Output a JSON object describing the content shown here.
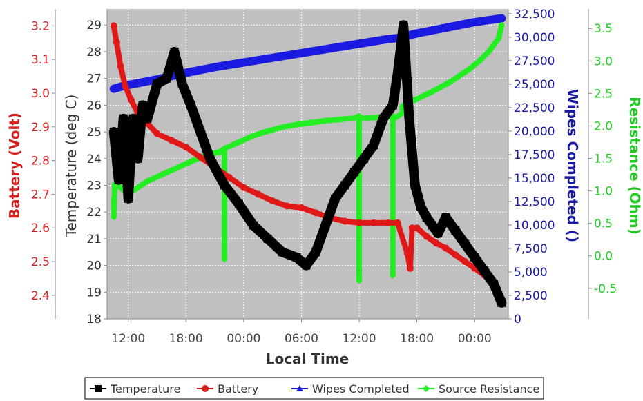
{
  "chart_data": {
    "type": "line",
    "xlabel": "Local Time",
    "x_ticks": [
      "12:00",
      "18:00",
      "00:00",
      "06:00",
      "12:00",
      "18:00",
      "00:00"
    ],
    "x_tick_hours": [
      12,
      18,
      24,
      30,
      36,
      42,
      48
    ],
    "xlim_hours": [
      9.8,
      51.5
    ],
    "grid": true,
    "legend_position": "bottom",
    "axes": {
      "battery": {
        "label": "Battery (Volt)",
        "color": "#d42020",
        "ticks": [
          "2.4",
          "2.5",
          "2.6",
          "2.7",
          "2.8",
          "2.9",
          "3.0",
          "3.1",
          "3.2"
        ],
        "ylim": [
          2.33,
          3.25
        ]
      },
      "temperature": {
        "label": "Temperature (deg C)",
        "color": "#333333",
        "ticks": [
          "18",
          "19",
          "20",
          "21",
          "22",
          "23",
          "24",
          "25",
          "26",
          "27",
          "28",
          "29"
        ],
        "ylim": [
          18,
          29.6
        ]
      },
      "wipes": {
        "label": "Wipes Completed ()",
        "color": "#1a1aa0",
        "ticks": [
          "0",
          "2,500",
          "5,000",
          "7,500",
          "10,000",
          "12,500",
          "15,000",
          "17,500",
          "20,000",
          "22,500",
          "25,000",
          "27,500",
          "30,000",
          "32,500"
        ],
        "ylim": [
          0,
          33000
        ]
      },
      "resistance": {
        "label": "Resistance (Ohm)",
        "color": "#22cc22",
        "ticks": [
          "-0.5",
          "0.0",
          "0.5",
          "1.0",
          "1.5",
          "2.0",
          "2.5",
          "3.0",
          "3.5"
        ],
        "ylim": [
          -0.97,
          3.8
        ]
      }
    },
    "series": [
      {
        "name": "Temperature",
        "axis": "temperature",
        "color": "#000000",
        "marker": "square",
        "x": [
          10.5,
          11.0,
          11.5,
          12.0,
          12.5,
          13.0,
          13.5,
          14.0,
          15.0,
          16.0,
          16.8,
          17.6,
          18.5,
          19.5,
          20.5,
          22.0,
          23.5,
          25.0,
          26.5,
          28.0,
          29.5,
          30.5,
          31.5,
          32.5,
          33.5,
          34.5,
          35.5,
          36.5,
          37.5,
          38.5,
          39.5,
          40.0,
          40.6,
          41.2,
          41.8,
          42.4,
          43.0,
          43.6,
          44.2,
          45.0,
          46.0,
          47.0,
          48.0,
          49.0,
          50.0,
          50.8
        ],
        "y": [
          25.0,
          23.2,
          25.5,
          22.5,
          25.5,
          24.0,
          26.0,
          25.5,
          26.8,
          27.0,
          28.0,
          26.8,
          26.0,
          25.0,
          24.0,
          23.0,
          22.3,
          21.5,
          21.0,
          20.5,
          20.3,
          20.0,
          20.5,
          21.5,
          22.5,
          23.0,
          23.5,
          24.0,
          24.5,
          25.5,
          26.0,
          27.2,
          29.0,
          25.5,
          23.0,
          22.2,
          21.8,
          21.5,
          21.2,
          21.8,
          21.3,
          20.8,
          20.3,
          19.8,
          19.3,
          18.6
        ]
      },
      {
        "name": "Battery",
        "axis": "battery",
        "color": "#e01818",
        "marker": "circle",
        "x": [
          10.5,
          10.8,
          11.2,
          11.7,
          12.3,
          13.0,
          14.0,
          15.0,
          16.5,
          18.0,
          19.5,
          21.0,
          22.5,
          24.0,
          25.5,
          27.0,
          28.5,
          30.0,
          31.5,
          33.0,
          34.5,
          36.0,
          37.5,
          39.0,
          40.0,
          41.0,
          41.3,
          41.5,
          42.0,
          43.0,
          44.0,
          45.0,
          46.0,
          47.0,
          48.0,
          49.0,
          50.0,
          50.8
        ],
        "y": [
          3.2,
          3.15,
          3.08,
          3.02,
          2.98,
          2.94,
          2.91,
          2.88,
          2.86,
          2.84,
          2.81,
          2.78,
          2.75,
          2.72,
          2.7,
          2.68,
          2.665,
          2.66,
          2.645,
          2.63,
          2.62,
          2.615,
          2.615,
          2.615,
          2.615,
          2.525,
          2.48,
          2.6,
          2.6,
          2.575,
          2.555,
          2.54,
          2.52,
          2.5,
          2.48,
          2.46,
          2.43,
          2.39
        ]
      },
      {
        "name": "Wipes Completed",
        "axis": "wipes",
        "color": "#1a1ae0",
        "marker": "triangle",
        "x": [
          10.5,
          11.5,
          13.0,
          15.0,
          18.0,
          21.0,
          24.0,
          27.0,
          30.0,
          33.0,
          36.0,
          39.0,
          40.0,
          42.0,
          45.0,
          48.0,
          50.8
        ],
        "y": [
          24500,
          24800,
          25100,
          25500,
          26200,
          26800,
          27300,
          27800,
          28300,
          28800,
          29300,
          29800,
          29900,
          30400,
          31000,
          31600,
          32000
        ]
      },
      {
        "name": "Source Resistance",
        "axis": "resistance",
        "color": "#22ee22",
        "marker": "diamond",
        "x": [
          10.5,
          10.5,
          10.6,
          11.2,
          12.0,
          13.0,
          14.0,
          15.5,
          17.0,
          18.5,
          20.0,
          21.5,
          22.0,
          22.0,
          22.0,
          23.5,
          25.0,
          26.5,
          28.0,
          29.5,
          31.0,
          32.5,
          34.0,
          35.5,
          36.0,
          36.0,
          36.0,
          37.0,
          38.5,
          39.5,
          39.5,
          39.5,
          40.5,
          40.5,
          40.5,
          41.5,
          42.5,
          43.5,
          44.5,
          45.5,
          46.5,
          47.5,
          48.5,
          49.5,
          50.5,
          50.8
        ],
        "y": [
          0.88,
          0.6,
          1.1,
          1.05,
          0.95,
          1.05,
          1.15,
          1.25,
          1.35,
          1.45,
          1.55,
          1.6,
          1.65,
          -0.05,
          1.65,
          1.75,
          1.85,
          1.92,
          1.98,
          2.02,
          2.05,
          2.08,
          2.1,
          2.12,
          2.15,
          -0.38,
          2.12,
          2.12,
          2.14,
          2.15,
          -0.3,
          2.1,
          2.2,
          2.25,
          2.3,
          2.38,
          2.45,
          2.52,
          2.6,
          2.68,
          2.78,
          2.88,
          3.0,
          3.15,
          3.35,
          3.55
        ]
      }
    ]
  }
}
